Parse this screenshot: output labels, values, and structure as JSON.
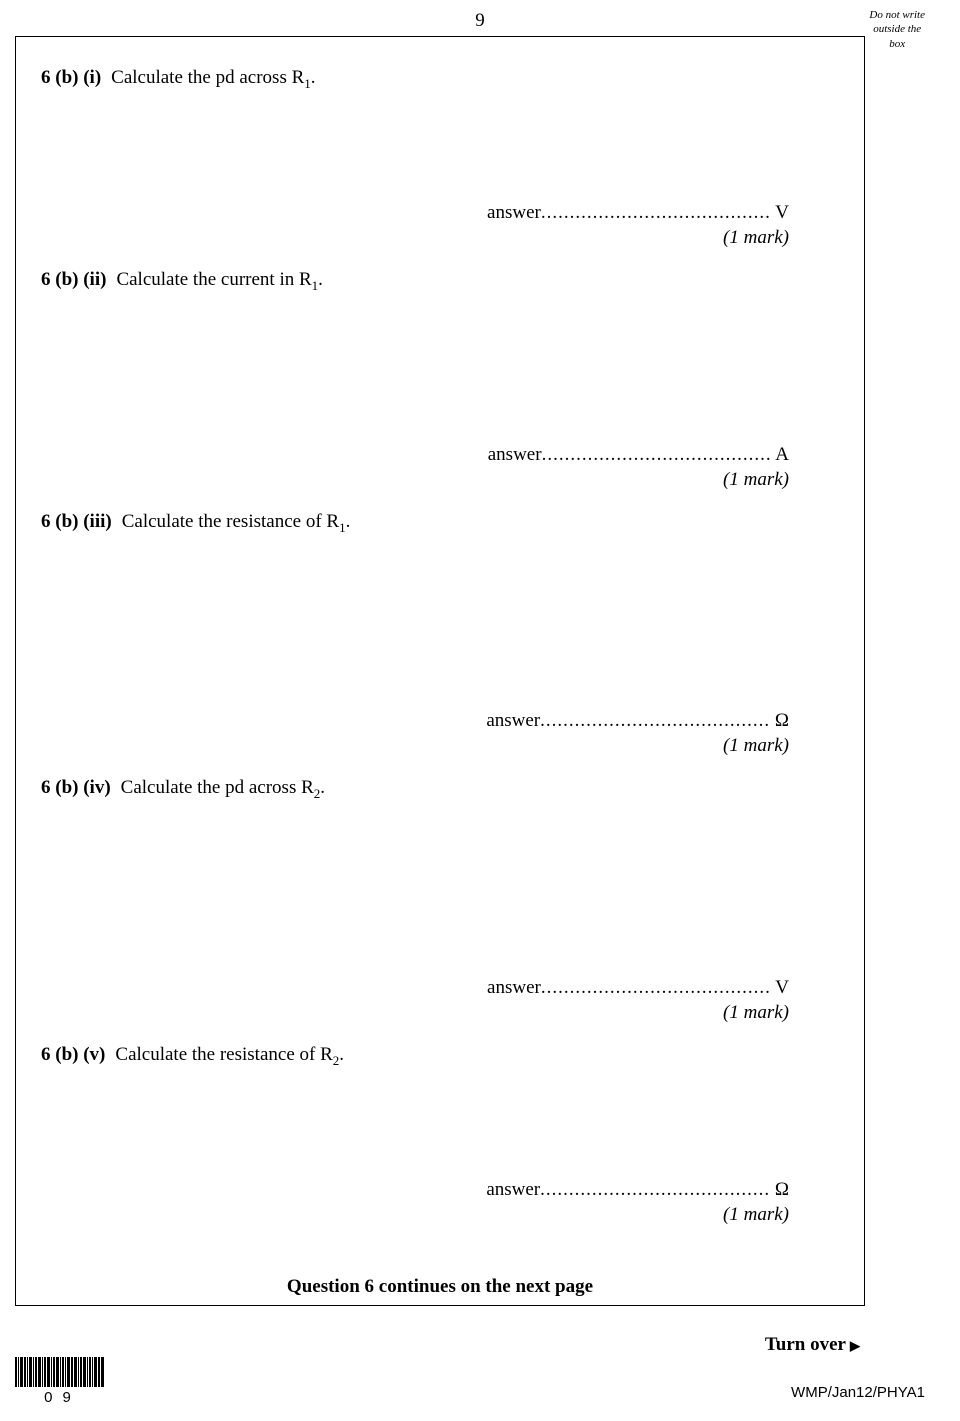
{
  "page_number": "9",
  "margin_note": "Do not write\noutside the\nbox",
  "questions": [
    {
      "label": "6  (b) (i)",
      "text_before": "Calculate the pd across R",
      "sub": "1",
      "text_after": ".",
      "gap": "gap-small",
      "answer_label": "answer",
      "dots": "........................................",
      "unit": "V",
      "mark": "(1 mark)"
    },
    {
      "label": "6  (b) (ii)",
      "text_before": "Calculate the current in R",
      "sub": "1",
      "text_after": ".",
      "gap": "gap-medium",
      "answer_label": "answer",
      "dots": "........................................",
      "unit": "A",
      "mark": "(1 mark)"
    },
    {
      "label": "6  (b) (iii)",
      "text_before": "Calculate the resistance of R",
      "sub": "1",
      "text_after": ".",
      "gap": "gap-large",
      "answer_label": "answer",
      "dots": "........................................",
      "unit": "Ω",
      "mark": "(1 mark)"
    },
    {
      "label": "6  (b) (iv)",
      "text_before": "Calculate the pd across R",
      "sub": "2",
      "text_after": ".",
      "gap": "gap-large",
      "answer_label": "answer",
      "dots": "........................................",
      "unit": "V",
      "mark": "(1 mark)"
    },
    {
      "label": "6  (b) (v)",
      "text_before": "Calculate the resistance of R",
      "sub": "2",
      "text_after": ".",
      "gap": "gap-small",
      "answer_label": "answer",
      "dots": "........................................",
      "unit": "Ω",
      "mark": "(1 mark)"
    }
  ],
  "continues": "Question 6 continues on the next page",
  "turn_over": "Turn over",
  "barcode_text": "09",
  "footer_code": "WMP/Jan12/PHYA1"
}
